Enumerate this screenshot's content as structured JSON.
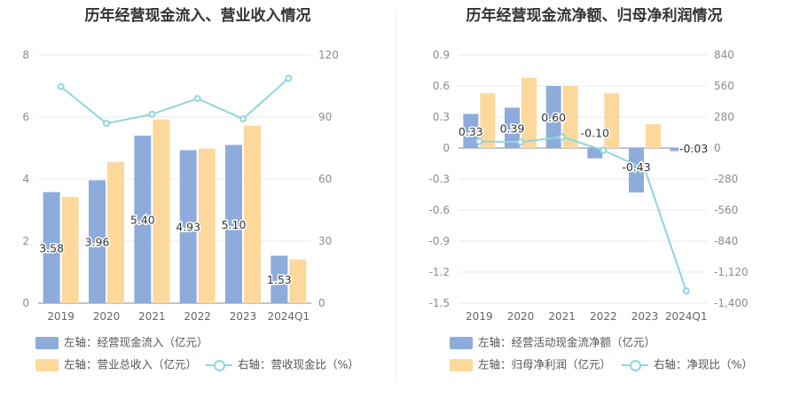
{
  "chart_data": [
    {
      "type": "bar",
      "title": "历年经营现金流入、营业收入情况",
      "categories": [
        "2019",
        "2020",
        "2021",
        "2022",
        "2023",
        "2024Q1"
      ],
      "series": [
        {
          "name": "左轴：经营现金流入（亿元）",
          "axis": "left",
          "kind": "bar",
          "color": "#8eacdb",
          "values": [
            3.58,
            3.96,
            5.4,
            4.93,
            5.1,
            1.53
          ],
          "labels": [
            "3.58",
            "3.96",
            "5.40",
            "4.93",
            "5.10",
            "1.53"
          ]
        },
        {
          "name": "左轴：营业总收入（亿元）",
          "axis": "left",
          "kind": "bar",
          "color": "#fdd89c",
          "values": [
            3.42,
            4.55,
            5.92,
            4.98,
            5.72,
            1.41
          ]
        },
        {
          "name": "右轴：营收现金比（%）",
          "axis": "right",
          "kind": "line",
          "color": "#8fd6dc",
          "values": [
            104.7,
            86.9,
            91.3,
            98.9,
            89.1,
            108.7
          ]
        }
      ],
      "left_axis": {
        "ylim": [
          0,
          8
        ],
        "ticks": [
          "0",
          "2",
          "4",
          "6",
          "8"
        ]
      },
      "right_axis": {
        "ylim": [
          0,
          120
        ],
        "ticks": [
          "0",
          "30",
          "60",
          "90",
          "120"
        ]
      },
      "grid": true,
      "legend_position": "bottom-left"
    },
    {
      "type": "bar",
      "title": "历年经营现金流净额、归母净利润情况",
      "categories": [
        "2019",
        "2020",
        "2021",
        "2022",
        "2023",
        "2024Q1"
      ],
      "series": [
        {
          "name": "左轴：经营活动现金流净额（亿元）",
          "axis": "left",
          "kind": "bar",
          "color": "#8eacdb",
          "values": [
            0.33,
            0.39,
            0.6,
            -0.1,
            -0.43,
            -0.03
          ],
          "labels": [
            "0.33",
            "0.39",
            "0.60",
            "-0.10",
            "-0.43",
            "-0.03"
          ]
        },
        {
          "name": "左轴：归母净利润（亿元）",
          "axis": "left",
          "kind": "bar",
          "color": "#fdd89c",
          "values": [
            0.53,
            0.68,
            0.6,
            0.53,
            0.23,
            0.0
          ]
        },
        {
          "name": "右轴：净现比（%）",
          "axis": "right",
          "kind": "line",
          "color": "#8fd6dc",
          "values": [
            60,
            55,
            100,
            -20,
            -190,
            -1290
          ]
        }
      ],
      "left_axis": {
        "ylim": [
          -1.5,
          0.9
        ],
        "ticks": [
          "0.9",
          "0.6",
          "0.3",
          "0",
          "-0.3",
          "-0.6",
          "-0.9",
          "-1.2",
          "-1.5"
        ]
      },
      "right_axis": {
        "ylim": [
          -1400,
          840
        ],
        "ticks": [
          "840",
          "560",
          "280",
          "0",
          "-280",
          "-560",
          "-840",
          "-1,120",
          "-1,400"
        ]
      },
      "grid": true,
      "legend_position": "bottom-left"
    }
  ]
}
